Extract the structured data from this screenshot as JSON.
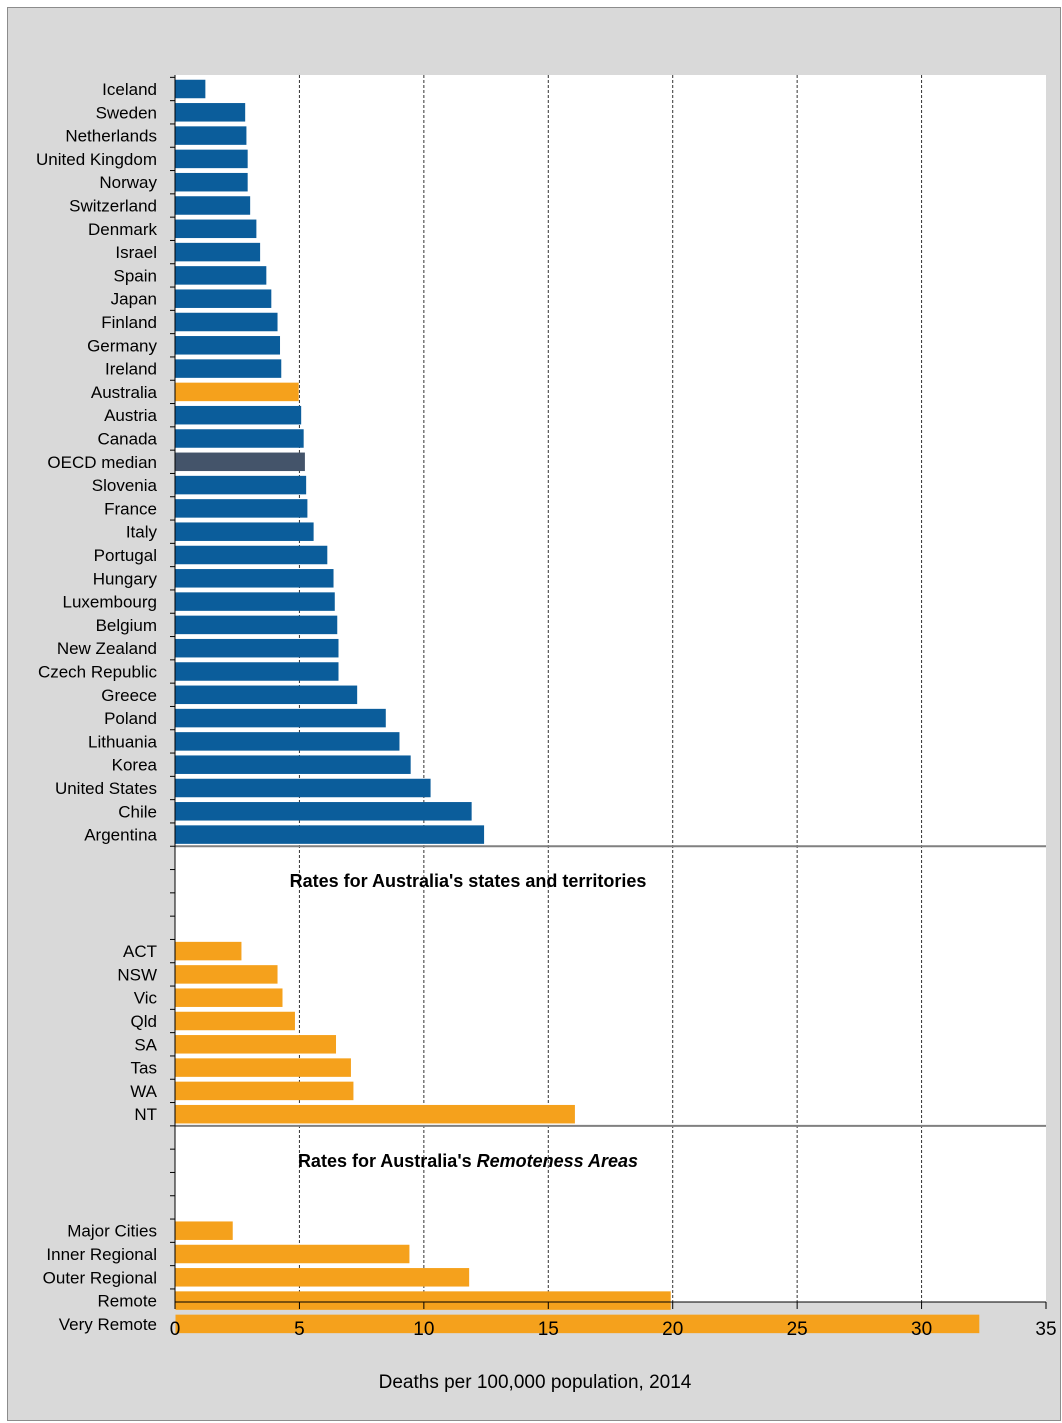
{
  "chart_data": {
    "type": "bar",
    "orientation": "horizontal",
    "xlabel": "Deaths per 100,000 population, 2014",
    "xlim": [
      0,
      35
    ],
    "xticks": [
      0,
      5,
      10,
      15,
      20,
      25,
      30,
      35
    ],
    "grid": "vertical dashed",
    "colors": {
      "country": "#0b5d9b",
      "australia": "#f5a11c",
      "median": "#44546a",
      "background": "#d9d9d9",
      "separator": "#808080"
    },
    "groups": [
      {
        "id": "oecd",
        "title": "",
        "title_italic": "",
        "bars": [
          {
            "label": "Iceland",
            "value": 1.2,
            "kind": "country"
          },
          {
            "label": "Sweden",
            "value": 2.8,
            "kind": "country"
          },
          {
            "label": "Netherlands",
            "value": 2.85,
            "kind": "country"
          },
          {
            "label": "United Kingdom",
            "value": 2.9,
            "kind": "country"
          },
          {
            "label": "Norway",
            "value": 2.9,
            "kind": "country"
          },
          {
            "label": "Switzerland",
            "value": 3.0,
            "kind": "country"
          },
          {
            "label": "Denmark",
            "value": 3.25,
            "kind": "country"
          },
          {
            "label": "Israel",
            "value": 3.4,
            "kind": "country"
          },
          {
            "label": "Spain",
            "value": 3.65,
            "kind": "country"
          },
          {
            "label": "Japan",
            "value": 3.85,
            "kind": "country"
          },
          {
            "label": "Finland",
            "value": 4.1,
            "kind": "country"
          },
          {
            "label": "Germany",
            "value": 4.2,
            "kind": "country"
          },
          {
            "label": "Ireland",
            "value": 4.25,
            "kind": "country"
          },
          {
            "label": "Australia",
            "value": 4.95,
            "kind": "australia"
          },
          {
            "label": "Austria",
            "value": 5.05,
            "kind": "country"
          },
          {
            "label": "Canada",
            "value": 5.15,
            "kind": "country"
          },
          {
            "label": "OECD median",
            "value": 5.2,
            "kind": "median"
          },
          {
            "label": "Slovenia",
            "value": 5.25,
            "kind": "country"
          },
          {
            "label": "France",
            "value": 5.3,
            "kind": "country"
          },
          {
            "label": "Italy",
            "value": 5.55,
            "kind": "country"
          },
          {
            "label": "Portugal",
            "value": 6.1,
            "kind": "country"
          },
          {
            "label": "Hungary",
            "value": 6.35,
            "kind": "country"
          },
          {
            "label": "Luxembourg",
            "value": 6.4,
            "kind": "country"
          },
          {
            "label": "Belgium",
            "value": 6.5,
            "kind": "country"
          },
          {
            "label": "New Zealand",
            "value": 6.55,
            "kind": "country"
          },
          {
            "label": "Czech Republic",
            "value": 6.55,
            "kind": "country"
          },
          {
            "label": "Greece",
            "value": 7.3,
            "kind": "country"
          },
          {
            "label": "Poland",
            "value": 8.45,
            "kind": "country"
          },
          {
            "label": "Lithuania",
            "value": 9.0,
            "kind": "country"
          },
          {
            "label": "Korea",
            "value": 9.45,
            "kind": "country"
          },
          {
            "label": "United States",
            "value": 10.25,
            "kind": "country"
          },
          {
            "label": "Chile",
            "value": 11.9,
            "kind": "country"
          },
          {
            "label": "Argentina",
            "value": 12.4,
            "kind": "country"
          }
        ]
      },
      {
        "id": "states",
        "title": "Rates for Australia's states and territories",
        "title_italic": "",
        "bars": [
          {
            "label": "ACT",
            "value": 2.65,
            "kind": "australia"
          },
          {
            "label": "NSW",
            "value": 4.1,
            "kind": "australia"
          },
          {
            "label": "Vic",
            "value": 4.3,
            "kind": "australia"
          },
          {
            "label": "Qld",
            "value": 4.8,
            "kind": "australia"
          },
          {
            "label": "SA",
            "value": 6.45,
            "kind": "australia"
          },
          {
            "label": "Tas",
            "value": 7.05,
            "kind": "australia"
          },
          {
            "label": "WA",
            "value": 7.15,
            "kind": "australia"
          },
          {
            "label": "NT",
            "value": 16.05,
            "kind": "australia"
          }
        ]
      },
      {
        "id": "remoteness",
        "title": "Rates for Australia's ",
        "title_italic": "Remoteness Areas",
        "bars": [
          {
            "label": "Major Cities",
            "value": 2.3,
            "kind": "australia"
          },
          {
            "label": "Inner Regional",
            "value": 9.4,
            "kind": "australia"
          },
          {
            "label": "Outer Regional",
            "value": 11.8,
            "kind": "australia"
          },
          {
            "label": "Remote",
            "value": 19.9,
            "kind": "australia"
          },
          {
            "label": "Very Remote",
            "value": 32.3,
            "kind": "australia"
          }
        ]
      }
    ]
  }
}
